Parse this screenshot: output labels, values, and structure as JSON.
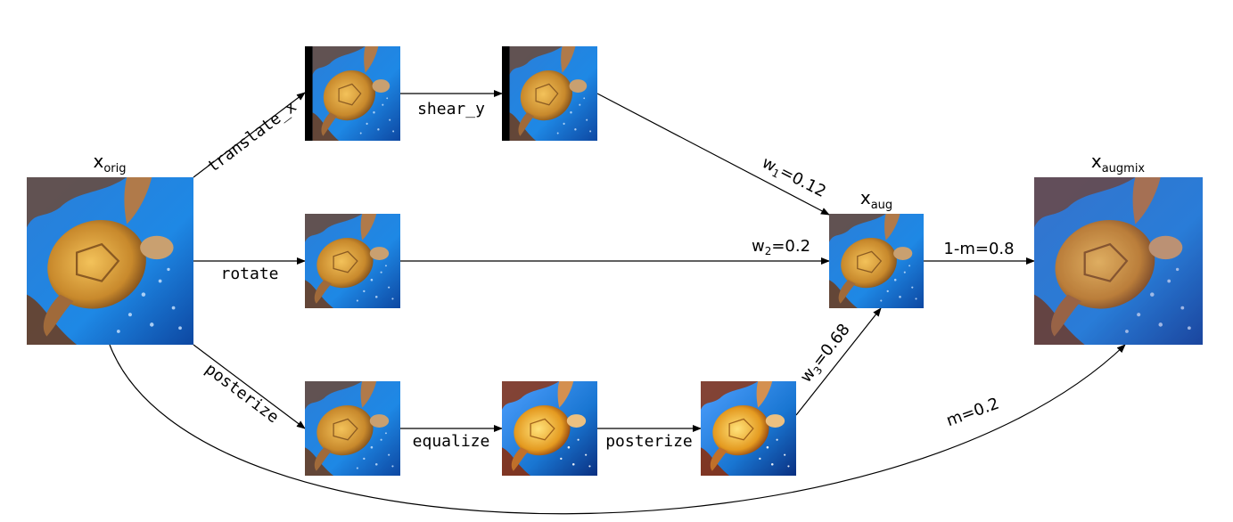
{
  "nodes": {
    "orig": {
      "name": "x",
      "sub": "orig"
    },
    "aug": {
      "name": "x",
      "sub": "aug"
    },
    "augmix": {
      "name": "x",
      "sub": "augmix"
    }
  },
  "ops": {
    "translate_x": "translate_x",
    "shear_y": "shear_y",
    "rotate": "rotate",
    "posterize": "posterize",
    "equalize": "equalize",
    "posterize_2": "posterize"
  },
  "weights": {
    "w1": {
      "name": "w",
      "sub": "1",
      "value": "=0.12"
    },
    "w2": {
      "name": "w",
      "sub": "2",
      "value": "=0.2"
    },
    "w3": {
      "name": "w",
      "sub": "3",
      "value": "=0.68"
    },
    "one_minus_m": "1-m=0.8",
    "m": "m=0.2"
  },
  "colors": {
    "sea_deep": "#1565c0",
    "sea_light": "#42a5f5",
    "shell_gold": "#e0a23a",
    "reef_brown": "#5d3a22"
  }
}
